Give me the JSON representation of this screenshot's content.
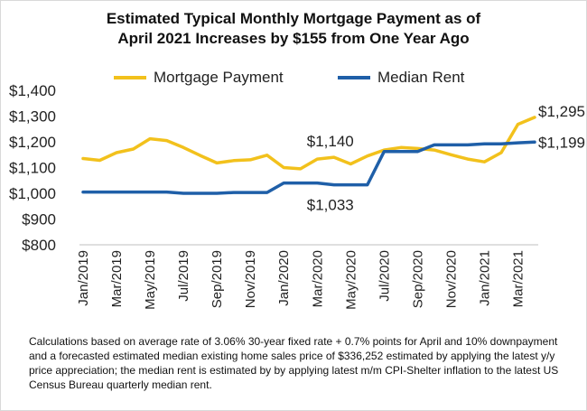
{
  "title_line1": "Estimated Typical Monthly Mortgage Payment as of",
  "title_line2": "April 2021 Increases by $155 from One Year Ago",
  "footnote": "Calculations based on average rate of 3.06% 30-year fixed rate + 0.7% points for April and 10% downpayment and a forecasted estimated median existing home sales price of $336,252 estimated by applying the latest y/y price appreciation; the median rent is estimated by by applying  latest m/m CPI-Shelter inflation to the latest US Census Bureau quarterly median rent.",
  "chart_data": {
    "type": "line",
    "title": "Estimated Typical Monthly Mortgage Payment as of April 2021 Increases by $155 from One Year Ago",
    "categories": [
      "Jan/2019",
      "Feb/2019",
      "Mar/2019",
      "Apr/2019",
      "May/2019",
      "Jun/2019",
      "Jul/2019",
      "Aug/2019",
      "Sep/2019",
      "Oct/2019",
      "Nov/2019",
      "Dec/2019",
      "Jan/2020",
      "Feb/2020",
      "Mar/2020",
      "Apr/2020",
      "May/2020",
      "Jun/2020",
      "Jul/2020",
      "Aug/2020",
      "Sep/2020",
      "Oct/2020",
      "Nov/2020",
      "Dec/2020",
      "Jan/2021",
      "Feb/2021",
      "Mar/2021",
      "Apr/2021"
    ],
    "tick_labels": [
      "Jan/2019",
      "Mar/2019",
      "May/2019",
      "Jul/2019",
      "Sep/2019",
      "Nov/2019",
      "Jan/2020",
      "Mar/2020",
      "May/2020",
      "Jul/2020",
      "Sep/2020",
      "Nov/2020",
      "Jan/2021",
      "Mar/2021"
    ],
    "yticks": [
      "$800",
      "$900",
      "$1,000",
      "$1,100",
      "$1,200",
      "$1,300",
      "$1,400"
    ],
    "ylim": [
      800,
      1400
    ],
    "grid": false,
    "legend": "top",
    "series": [
      {
        "name": "Mortgage Payment",
        "color": "#F2C11C",
        "values": [
          1135,
          1128,
          1158,
          1172,
          1212,
          1205,
          1178,
          1147,
          1118,
          1127,
          1130,
          1148,
          1100,
          1095,
          1133,
          1140,
          1114,
          1145,
          1168,
          1178,
          1174,
          1168,
          1150,
          1133,
          1122,
          1158,
          1268,
          1295
        ]
      },
      {
        "name": "Median Rent",
        "color": "#1F5FA8",
        "values": [
          1005,
          1005,
          1005,
          1005,
          1005,
          1005,
          1000,
          1000,
          1000,
          1003,
          1003,
          1003,
          1040,
          1040,
          1040,
          1033,
          1033,
          1033,
          1162,
          1162,
          1162,
          1188,
          1188,
          1188,
          1192,
          1192,
          1196,
          1199
        ]
      }
    ],
    "annotations": [
      {
        "text": "$1,140",
        "series": 0,
        "index": 15,
        "place": "above"
      },
      {
        "text": "$1,033",
        "series": 1,
        "index": 15,
        "place": "below"
      },
      {
        "text": "$1,295",
        "series": 0,
        "index": 27,
        "place": "right"
      },
      {
        "text": "$1,199",
        "series": 1,
        "index": 27,
        "place": "right"
      }
    ]
  }
}
